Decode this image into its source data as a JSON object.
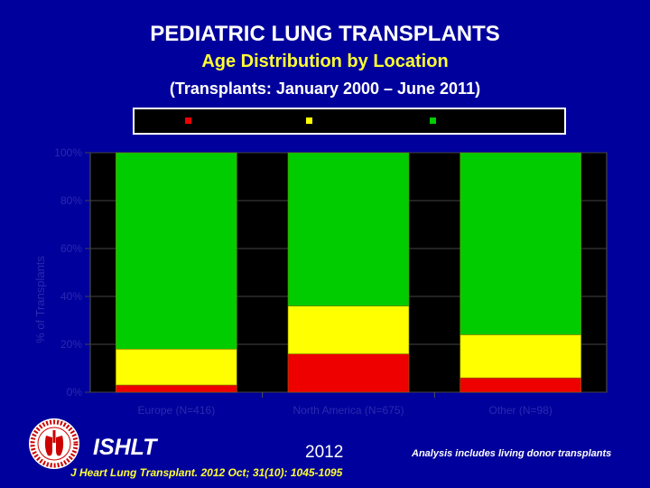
{
  "header": {
    "title": "PEDIATRIC LUNG TRANSPLANTS",
    "subtitle": "Age Distribution by Location",
    "range": "(Transplants: January 2000 – June 2011)"
  },
  "chart_data": {
    "type": "bar",
    "stacked": true,
    "categories": [
      "Europe (N=416)",
      "North America (N=675)",
      "Other (N=98)"
    ],
    "series": [
      {
        "color": "#ee0000",
        "values": [
          3,
          16,
          6
        ]
      },
      {
        "color": "#ffff00",
        "values": [
          15,
          20,
          18
        ]
      },
      {
        "color": "#00cc00",
        "values": [
          82,
          64,
          76
        ]
      }
    ],
    "ylabel": "% of Transplants",
    "yticks": [
      "0%",
      "20%",
      "40%",
      "60%",
      "80%",
      "100%"
    ],
    "ylim": [
      0,
      100
    ],
    "plot_background": "#000000",
    "legend": "top"
  },
  "footer": {
    "org": "ISHLT",
    "year": "2012",
    "note": "Analysis includes living donor transplants",
    "citation": "J Heart Lung Transplant. 2012 Oct; 31(10): 1045-1095"
  },
  "colors": {
    "background": "#00009c",
    "accent": "#ffff33"
  }
}
